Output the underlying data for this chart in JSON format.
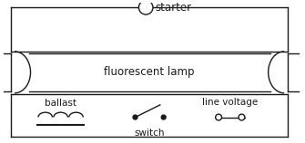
{
  "bg_color": "#ffffff",
  "line_color": "#1a1a1a",
  "text_color": "#1a1a1a",
  "fig_width": 3.35,
  "fig_height": 1.58,
  "dpi": 100,
  "starter_label": "starter",
  "lamp_label": "fluorescent lamp",
  "ballast_label": "ballast",
  "switch_label": "switch",
  "line_voltage_label": "line voltage",
  "fontsize_label": 8.5,
  "fontsize_small": 7.5,
  "lw": 1.0
}
